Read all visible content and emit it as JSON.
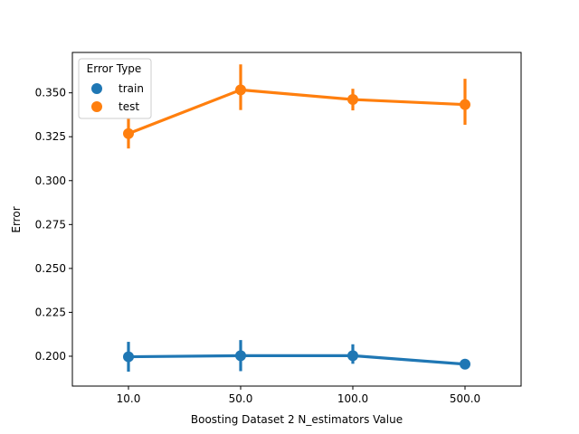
{
  "chart_data": {
    "type": "line",
    "xlabel": "Boosting Dataset 2 N_estimators Value",
    "ylabel": "Error",
    "categories": [
      "10.0",
      "50.0",
      "100.0",
      "500.0"
    ],
    "ylim": [
      0.183,
      0.373
    ],
    "yticks": [
      0.2,
      0.225,
      0.25,
      0.275,
      0.3,
      0.325,
      0.35
    ],
    "ytick_labels": [
      "0.200",
      "0.225",
      "0.250",
      "0.275",
      "0.300",
      "0.325",
      "0.350"
    ],
    "grid": false,
    "legend": {
      "title": "Error Type",
      "position": "top-left"
    },
    "series": [
      {
        "name": "train",
        "color": "#1f77b4",
        "values": [
          0.1997,
          0.2003,
          0.2003,
          0.1955
        ],
        "err_low": [
          0.1912,
          0.1915,
          0.1957,
          0.1945
        ],
        "err_high": [
          0.2082,
          0.2092,
          0.2068,
          0.1965
        ]
      },
      {
        "name": "test",
        "color": "#ff7f0e",
        "values": [
          0.3268,
          0.3517,
          0.3462,
          0.3433
        ],
        "err_low": [
          0.3183,
          0.3402,
          0.34,
          0.3318
        ],
        "err_high": [
          0.3358,
          0.3662,
          0.3523,
          0.358
        ]
      }
    ]
  }
}
